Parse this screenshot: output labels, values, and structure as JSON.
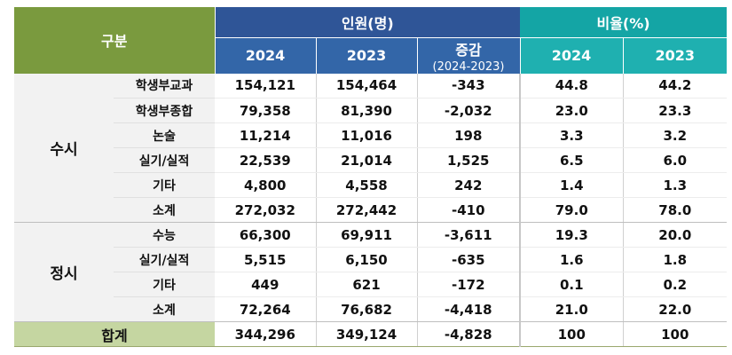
{
  "header": {
    "category": "구분",
    "people_group": "인원(명)",
    "ratio_group": "비율(%)",
    "col_2024": "2024",
    "col_2023": "2023",
    "col_change": "증감",
    "col_change_sub": "(2024-2023)",
    "col_ratio_2024": "2024",
    "col_ratio_2023": "2023"
  },
  "groups": [
    {
      "name": "수시",
      "rows": [
        {
          "label": "학생부교과",
          "p2024": "154,121",
          "p2023": "154,464",
          "diff": "-343",
          "r2024": "44.8",
          "r2023": "44.2"
        },
        {
          "label": "학생부종합",
          "p2024": "79,358",
          "p2023": "81,390",
          "diff": "-2,032",
          "r2024": "23.0",
          "r2023": "23.3"
        },
        {
          "label": "논술",
          "p2024": "11,214",
          "p2023": "11,016",
          "diff": "198",
          "r2024": "3.3",
          "r2023": "3.2"
        },
        {
          "label": "실기/실적",
          "p2024": "22,539",
          "p2023": "21,014",
          "diff": "1,525",
          "r2024": "6.5",
          "r2023": "6.0"
        },
        {
          "label": "기타",
          "p2024": "4,800",
          "p2023": "4,558",
          "diff": "242",
          "r2024": "1.4",
          "r2023": "1.3"
        },
        {
          "label": "소계",
          "p2024": "272,032",
          "p2023": "272,442",
          "diff": "-410",
          "r2024": "79.0",
          "r2023": "78.0"
        }
      ]
    },
    {
      "name": "정시",
      "rows": [
        {
          "label": "수능",
          "p2024": "66,300",
          "p2023": "69,911",
          "diff": "-3,611",
          "r2024": "19.3",
          "r2023": "20.0"
        },
        {
          "label": "실기/실적",
          "p2024": "5,515",
          "p2023": "6,150",
          "diff": "-635",
          "r2024": "1.6",
          "r2023": "1.8"
        },
        {
          "label": "기타",
          "p2024": "449",
          "p2023": "621",
          "diff": "-172",
          "r2024": "0.1",
          "r2023": "0.2"
        },
        {
          "label": "소계",
          "p2024": "72,264",
          "p2023": "76,682",
          "diff": "-4,418",
          "r2024": "21.0",
          "r2023": "22.0"
        }
      ]
    }
  ],
  "total": {
    "label": "합계",
    "p2024": "344,296",
    "p2023": "349,124",
    "diff": "-4,828",
    "r2024": "100",
    "r2023": "100"
  },
  "colors": {
    "header_green": "#7a9a3e",
    "header_navy": "#2f5597",
    "header_teal": "#14a5a5",
    "total_green": "#c5d6a1"
  }
}
